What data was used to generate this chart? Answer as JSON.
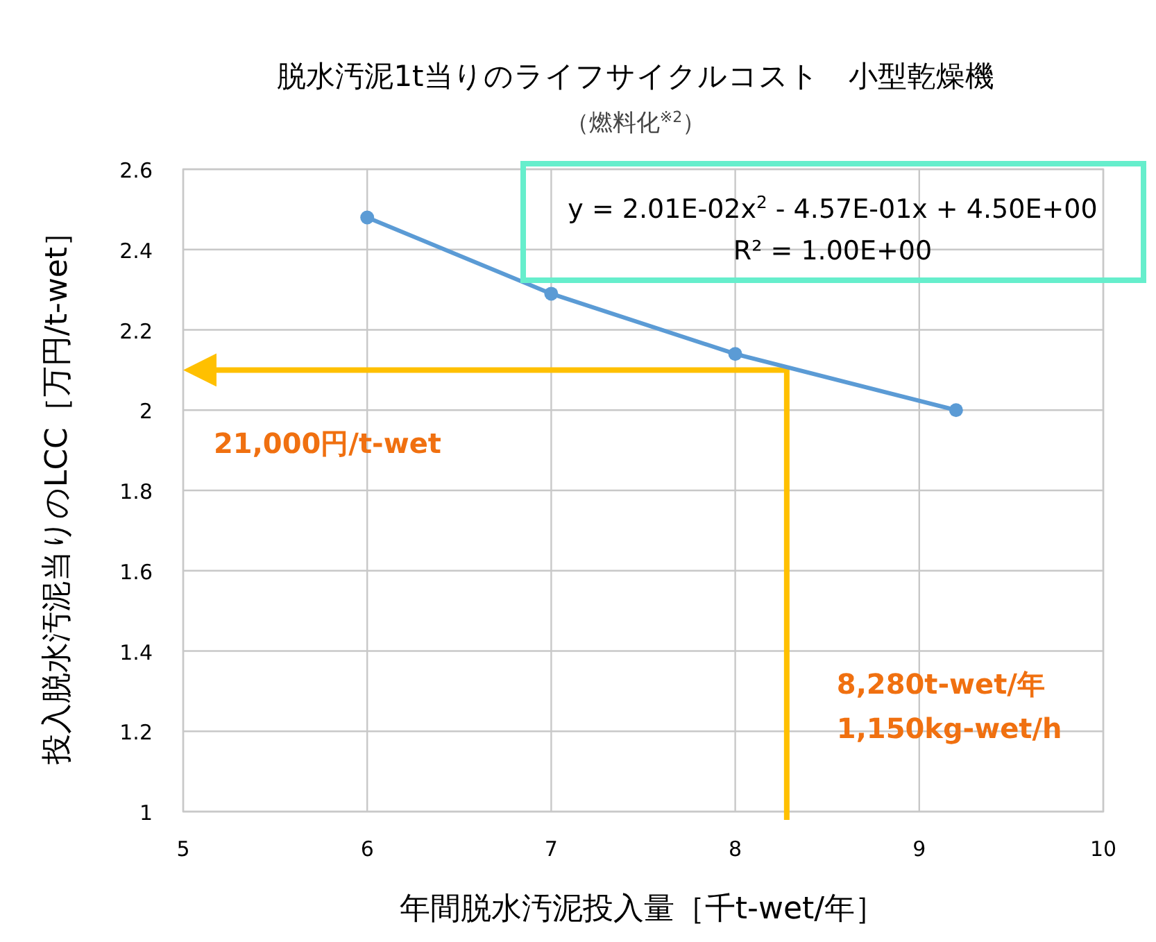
{
  "chart_data": {
    "type": "line",
    "title": "脱水汚泥1t当りのライフサイクルコスト　小型乾燥機",
    "subtitle": "（燃料化$^{※2}$）",
    "xlabel": "年間脱水汚泥投入量［千t-wet/年］",
    "ylabel": "投入脱水汚泥当りのLCC［万円/t-wet］",
    "x": [
      6,
      7,
      8,
      9.2
    ],
    "series": [
      {
        "color": "#5b9bd5",
        "values": [
          2.48,
          2.29,
          2.14,
          2.0
        ]
      }
    ],
    "marker": "circle",
    "line_style": "solid",
    "grid": true,
    "xlim": [
      5,
      10
    ],
    "xticks": [
      5,
      6,
      7,
      8,
      9,
      10
    ],
    "ylim": [
      1,
      2.6
    ],
    "yticks": [
      1,
      1.2,
      1.4,
      1.6,
      1.8,
      2,
      2.2,
      2.4,
      2.6
    ],
    "ref_lines": [
      {
        "axis": "y",
        "value": 2.1,
        "label": "21,000円/t-wet",
        "color": "#ffc000"
      },
      {
        "axis": "x",
        "value": 8.28,
        "label": "8,280t-wet/年",
        "color": "#ffc000"
      }
    ],
    "annotations": [
      "y = 2.01E-02x$^{2}$ - 4.57E-01x + 4.50E+00",
      "R² = 1.00E+00",
      {
        "text": "1,150kg-wet/h",
        "x": 8.28,
        "y": 1.2
      }
    ]
  }
}
